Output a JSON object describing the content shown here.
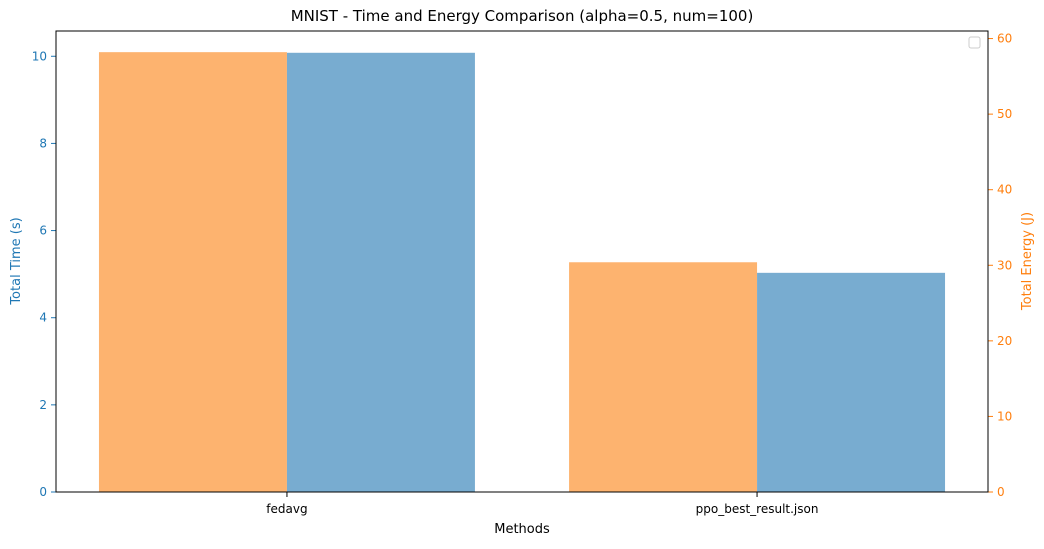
{
  "chart_data": {
    "type": "bar",
    "title": "MNIST - Time and Energy Comparison (alpha=0.5, num=100)",
    "xlabel": "Methods",
    "categories": [
      "fedavg",
      "ppo_best_result.json"
    ],
    "series": [
      {
        "name": "",
        "axis": "right",
        "ylabel": "Total Energy (J)",
        "values": [
          58.2,
          30.4
        ],
        "ylim": [
          0,
          61
        ],
        "yticks": [
          0,
          10,
          20,
          30,
          40,
          50,
          60
        ],
        "color": "#fdb36f"
      },
      {
        "name": "",
        "axis": "left",
        "ylabel": "Total Time (s)",
        "values": [
          10.08,
          5.03
        ],
        "ylim": [
          0,
          10.58
        ],
        "yticks": [
          0,
          2,
          4,
          6,
          8,
          10
        ],
        "color": "#78acd0"
      }
    ],
    "colors": {
      "left_axis": "#1f77b4",
      "right_axis": "#ff7f0e",
      "frame": "#000000"
    },
    "legend": {
      "placement": "top-right",
      "entries": []
    },
    "grid": false
  }
}
